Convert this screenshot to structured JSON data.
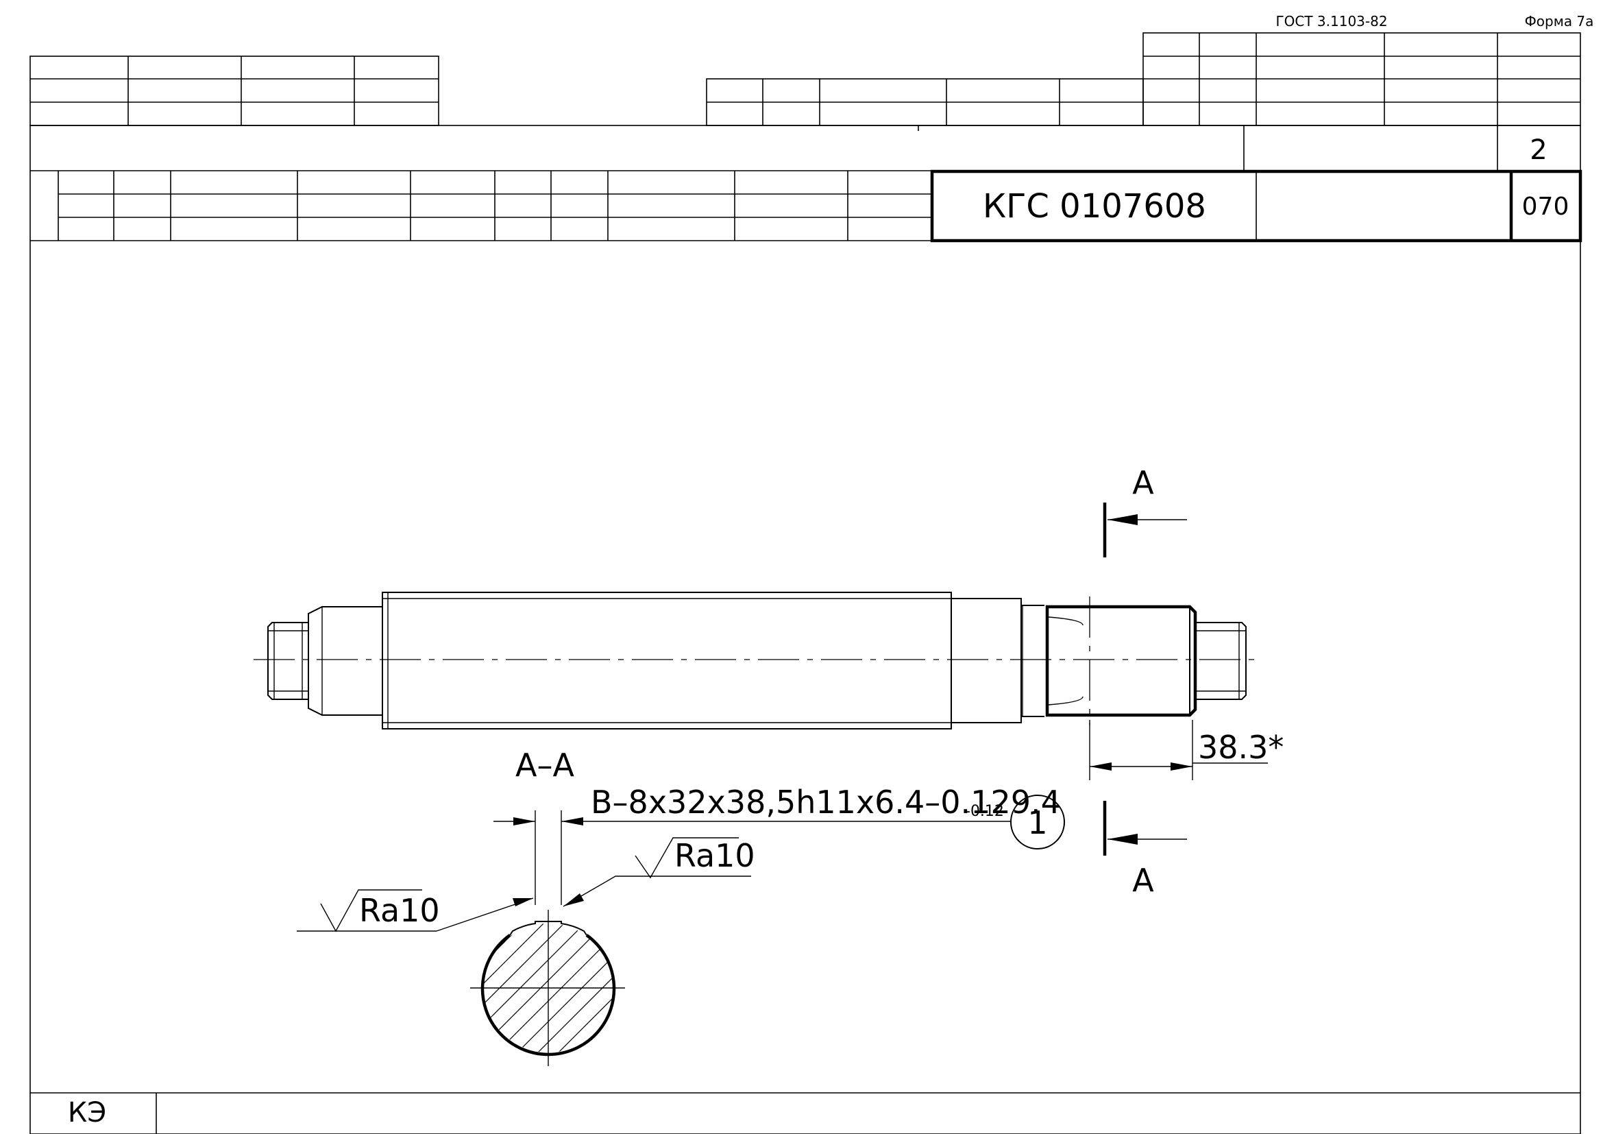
{
  "form": {
    "standard": "ГОСТ 3.1103-82",
    "form_name": "Форма 7а"
  },
  "title_block": {
    "sheet_number": "2",
    "document_code": "КГС 0107608",
    "operation_number": "070"
  },
  "drawing": {
    "section_label_top": "А",
    "section_label_bottom": "А",
    "section_view_label": "А–А",
    "spline_designation": "В–8х32х38,5h11х6.4–0.129.4",
    "spline_tolerance": "-0.12",
    "callout_number": "1",
    "dimension_length": "38.3*",
    "roughness_left": "Ra10",
    "roughness_right": "Ra10"
  },
  "footer": {
    "form_code": "КЭ"
  }
}
